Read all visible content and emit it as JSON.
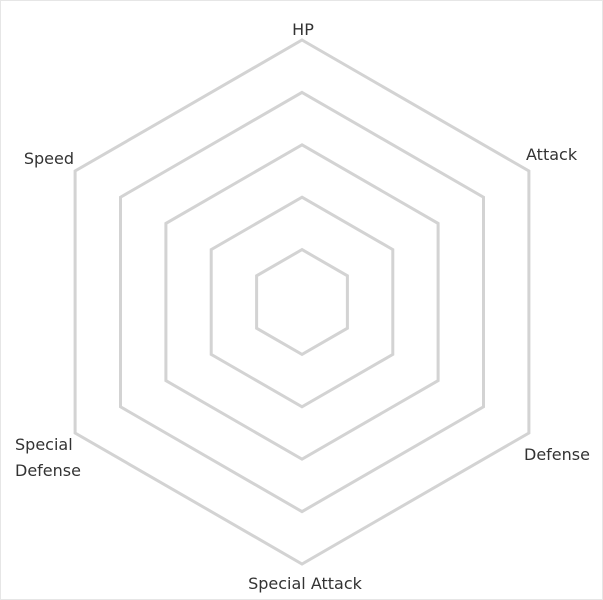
{
  "chart_data": {
    "type": "radar",
    "axes": [
      "HP",
      "Attack",
      "Defense",
      "Special Attack",
      "Special Defense",
      "Speed"
    ],
    "axis_labels": [
      {
        "lines": [
          "HP"
        ]
      },
      {
        "lines": [
          "Attack"
        ]
      },
      {
        "lines": [
          "Defense"
        ]
      },
      {
        "lines": [
          "Special Attack"
        ]
      },
      {
        "lines": [
          "Special",
          "Defense"
        ]
      },
      {
        "lines": [
          "Speed"
        ]
      }
    ],
    "rings": 5,
    "series": [],
    "grid": true,
    "colors": {
      "grid": "#d3d3d3",
      "label": "#333333",
      "frame": "#e6e6e6"
    }
  }
}
